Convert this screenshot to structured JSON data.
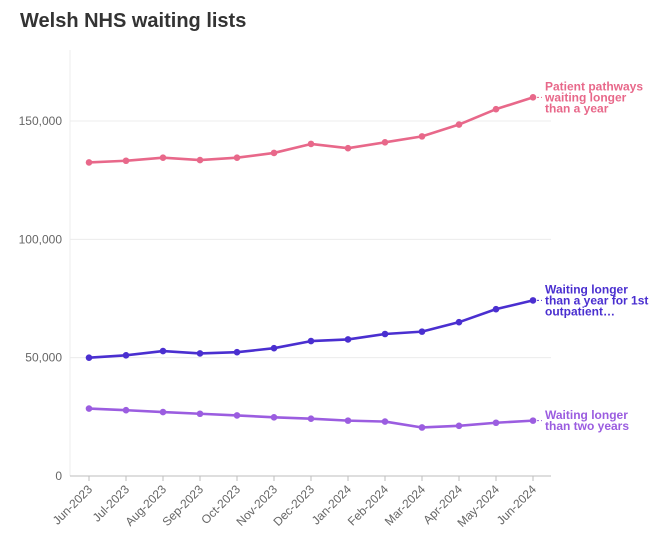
{
  "chart_data": {
    "type": "line",
    "title": "Welsh NHS waiting lists",
    "xlabel": "",
    "ylabel": "",
    "categories": [
      "Jun-2023",
      "Jul-2023",
      "Aug-2023",
      "Sep-2023",
      "Oct-2023",
      "Nov-2023",
      "Dec-2023",
      "Jan-2024",
      "Feb-2024",
      "Mar-2024",
      "Apr-2024",
      "May-2024",
      "Jun-2024"
    ],
    "ylim": [
      0,
      180000
    ],
    "yticks": [
      0,
      50000,
      100000,
      150000
    ],
    "ytick_labels": [
      "0",
      "50,000",
      "100,000",
      "150,000"
    ],
    "grid": true,
    "legend": "direct labels at line ends",
    "series": [
      {
        "name_lines": [
          "Patient pathways",
          "waiting longer",
          "than a year"
        ],
        "color": "#e8688a",
        "values": [
          132500,
          133200,
          134500,
          133500,
          134500,
          136500,
          140300,
          138500,
          141000,
          143500,
          148500,
          155000,
          160000
        ]
      },
      {
        "name_lines": [
          "Waiting longer",
          "than a year for 1st",
          "outpatient…"
        ],
        "color": "#4a2fd0",
        "values": [
          50000,
          51000,
          52800,
          51800,
          52300,
          54000,
          57000,
          57700,
          60000,
          61000,
          65000,
          70500,
          74200
        ]
      },
      {
        "name_lines": [
          "Waiting longer",
          "than two years"
        ],
        "color": "#9b5de0",
        "values": [
          28500,
          27800,
          27000,
          26300,
          25600,
          24800,
          24200,
          23400,
          23000,
          20500,
          21200,
          22500,
          23400
        ]
      }
    ]
  }
}
